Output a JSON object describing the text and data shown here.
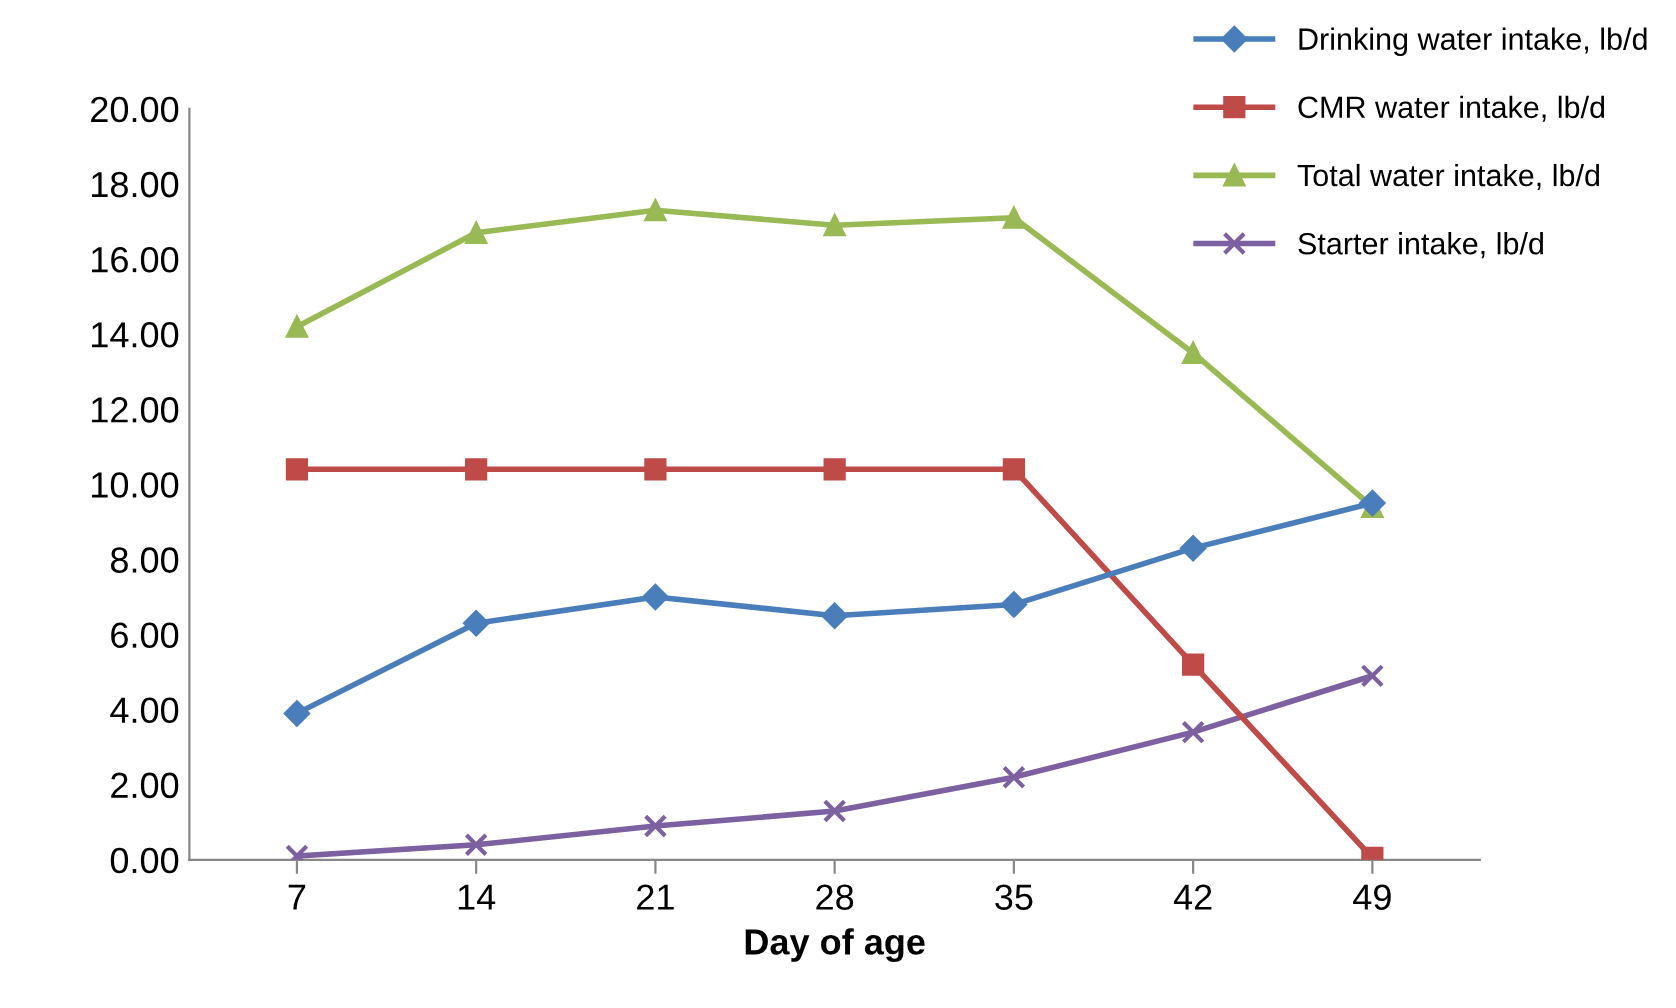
{
  "chart_data": {
    "type": "line",
    "xlabel": "Day of age",
    "categories": [
      "7",
      "14",
      "21",
      "28",
      "35",
      "42",
      "49"
    ],
    "series": [
      {
        "name": "Drinking water intake, lb/d",
        "color": "#4a7ebb",
        "marker": "diamond",
        "values": [
          3.9,
          6.3,
          7.0,
          6.5,
          6.8,
          8.3,
          9.5
        ]
      },
      {
        "name": "CMR water intake, lb/d",
        "color": "#be4b48",
        "marker": "square",
        "values": [
          10.4,
          10.4,
          10.4,
          10.4,
          10.4,
          5.2,
          0.05
        ]
      },
      {
        "name": "Total water intake, lb/d",
        "color": "#98b954",
        "marker": "triangle",
        "values": [
          14.2,
          16.7,
          17.3,
          16.9,
          17.1,
          13.5,
          9.4
        ]
      },
      {
        "name": "Starter intake, lb/d",
        "color": "#7d60a0",
        "marker": "cross",
        "values": [
          0.1,
          0.4,
          0.9,
          1.3,
          2.2,
          3.4,
          4.9
        ]
      }
    ],
    "ylim": [
      0,
      20
    ],
    "yticks": [
      {
        "value": 0,
        "label": "0.00"
      },
      {
        "value": 2,
        "label": "2.00"
      },
      {
        "value": 4,
        "label": "4.00"
      },
      {
        "value": 6,
        "label": "6.00"
      },
      {
        "value": 8,
        "label": "8.00"
      },
      {
        "value": 10,
        "label": "10.00"
      },
      {
        "value": 12,
        "label": "12.00"
      },
      {
        "value": 14,
        "label": "14.00"
      },
      {
        "value": 16,
        "label": "16.00"
      },
      {
        "value": 18,
        "label": "18.00"
      },
      {
        "value": 20,
        "label": "20.00"
      }
    ],
    "grid": false,
    "legend": "top right",
    "line_style": "solid"
  }
}
